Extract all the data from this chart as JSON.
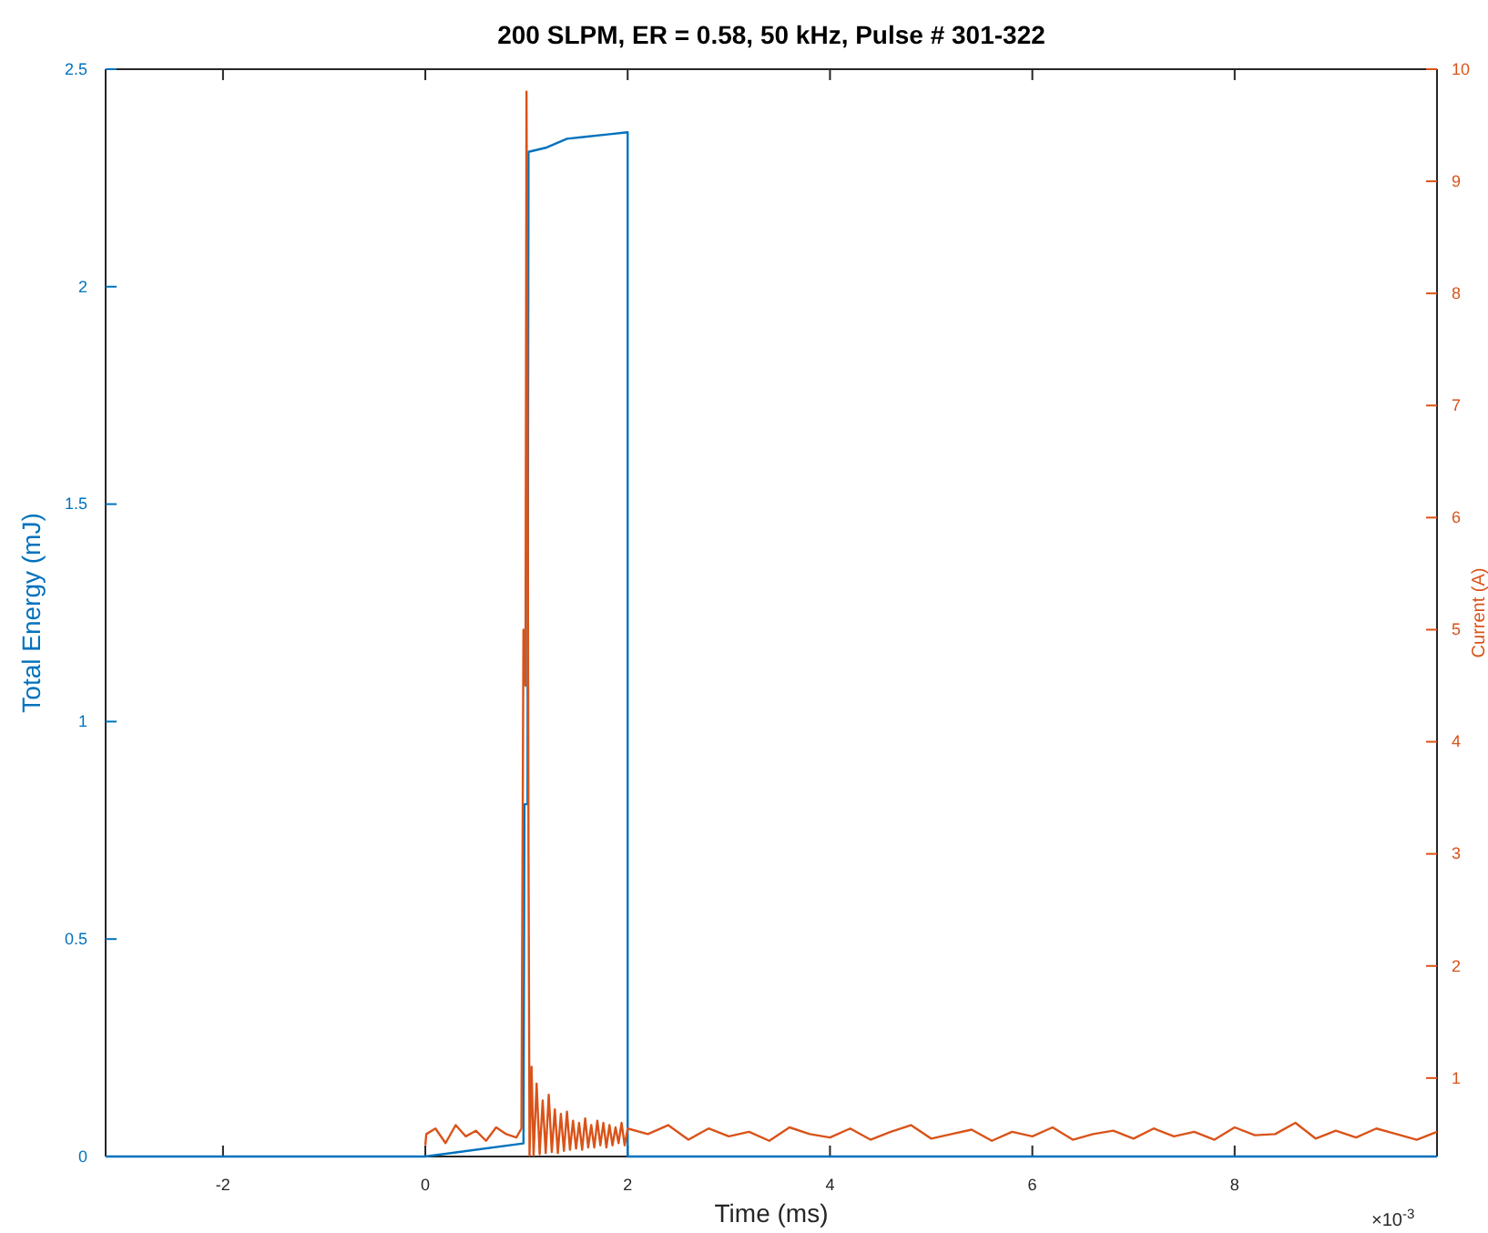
{
  "chart_data": {
    "type": "line",
    "title": "200 SLPM, ER = 0.58, 50 kHz, Pulse # 301-322",
    "xlabel": "Time (ms)",
    "ylabel": "Total Energy (mJ)",
    "y2label": "Current (A)",
    "xlim": [
      -3.16,
      10
    ],
    "xticks": [
      -2,
      0,
      2,
      4,
      6,
      8
    ],
    "ylim": [
      0,
      2.5
    ],
    "yticks": [
      0,
      0.5,
      1,
      1.5,
      2,
      2.5
    ],
    "y2lim": [
      0.3,
      10
    ],
    "y2ticks": [
      1,
      2,
      3,
      4,
      5,
      6,
      7,
      8,
      9,
      10
    ],
    "grid": false,
    "line_style": "solid",
    "marker": "none",
    "annotations": [
      "×10$^{-3}$"
    ],
    "series": [
      {
        "color": "#0072bd",
        "x": [
          -3.16,
          0,
          0.97,
          0.98,
          1.01,
          1.02,
          1.2,
          1.4,
          1.6,
          1.8,
          2,
          2,
          10
        ],
        "values": [
          0,
          0,
          0.03,
          0.81,
          0.81,
          2.31,
          2.32,
          2.34,
          2.345,
          2.35,
          2.355,
          0,
          0
        ]
      },
      {
        "color": "#d95319",
        "axis": "y2",
        "x": [
          0,
          0.01,
          0.1,
          0.2,
          0.3,
          0.4,
          0.5,
          0.6,
          0.7,
          0.8,
          0.9,
          0.95,
          0.97,
          0.99,
          1,
          1.01,
          1.02,
          1.03,
          1.05,
          1.07,
          1.1,
          1.13,
          1.16,
          1.19,
          1.22,
          1.25,
          1.28,
          1.31,
          1.34,
          1.37,
          1.4,
          1.43,
          1.46,
          1.49,
          1.52,
          1.55,
          1.58,
          1.61,
          1.64,
          1.67,
          1.7,
          1.73,
          1.76,
          1.79,
          1.82,
          1.85,
          1.88,
          1.91,
          1.94,
          1.97,
          2,
          2.2,
          2.4,
          2.6,
          2.8,
          3,
          3.2,
          3.4,
          3.6,
          3.8,
          4,
          4.2,
          4.4,
          4.6,
          4.8,
          5,
          5.2,
          5.4,
          5.6,
          5.8,
          6,
          6.2,
          6.4,
          6.6,
          6.8,
          7,
          7.2,
          7.4,
          7.6,
          7.8,
          8,
          8.2,
          8.4,
          8.6,
          8.8,
          9,
          9.2,
          9.4,
          9.6,
          9.8,
          10
        ],
        "values": [
          0.4,
          0.5,
          0.55,
          0.42,
          0.58,
          0.48,
          0.53,
          0.44,
          0.56,
          0.5,
          0.47,
          0.55,
          5.0,
          4.5,
          9.8,
          7.3,
          3.0,
          0.31,
          1.1,
          0.31,
          0.95,
          0.32,
          0.8,
          0.33,
          0.85,
          0.34,
          0.72,
          0.33,
          0.68,
          0.35,
          0.7,
          0.36,
          0.62,
          0.37,
          0.6,
          0.36,
          0.64,
          0.38,
          0.58,
          0.38,
          0.62,
          0.4,
          0.6,
          0.38,
          0.58,
          0.4,
          0.56,
          0.42,
          0.6,
          0.4,
          0.55,
          0.5,
          0.58,
          0.45,
          0.55,
          0.48,
          0.52,
          0.44,
          0.56,
          0.5,
          0.47,
          0.55,
          0.45,
          0.52,
          0.58,
          0.46,
          0.5,
          0.54,
          0.44,
          0.52,
          0.48,
          0.56,
          0.45,
          0.5,
          0.53,
          0.46,
          0.55,
          0.48,
          0.52,
          0.45,
          0.56,
          0.49,
          0.5,
          0.6,
          0.46,
          0.53,
          0.47,
          0.55,
          0.5,
          0.45,
          0.52
        ]
      }
    ]
  }
}
